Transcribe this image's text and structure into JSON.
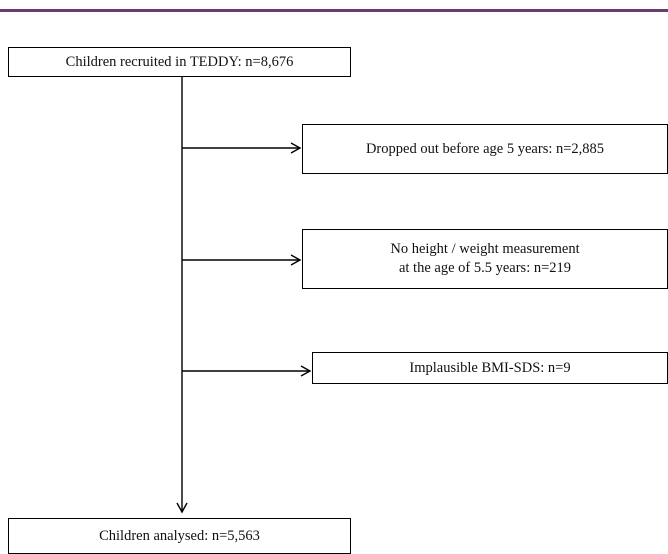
{
  "colors": {
    "top_bar": "#6a3d6e",
    "lines": "#000000"
  },
  "flowchart": {
    "recruited": "Children recruited in TEDDY: n=8,676",
    "dropped_out": "Dropped out before age 5 years: n=2,885",
    "no_measurement_line1": "No height / weight measurement",
    "no_measurement_line2": "at the age of 5.5 years: n=219",
    "implausible": "Implausible BMI-SDS: n=9",
    "analysed": "Children analysed: n=5,563"
  }
}
